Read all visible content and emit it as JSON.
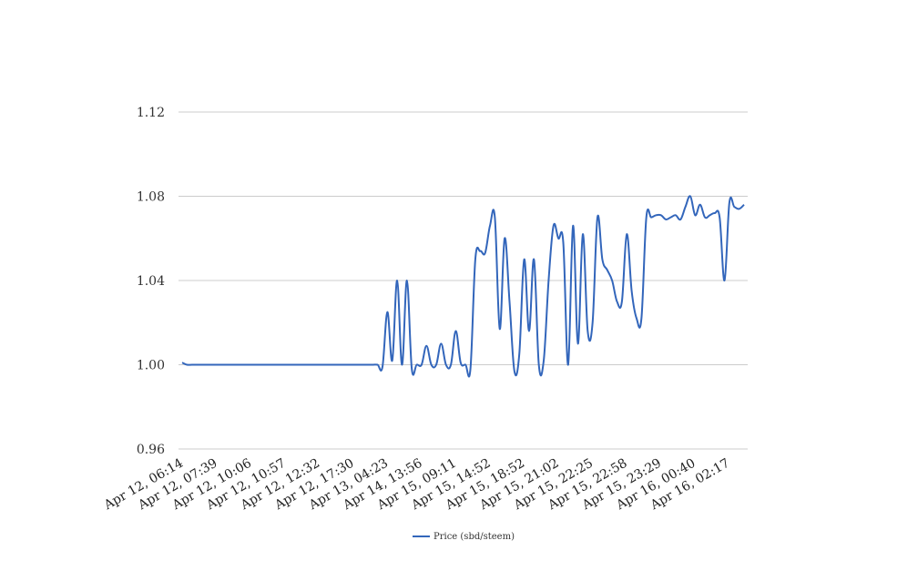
{
  "chart_data": {
    "type": "line",
    "title": "",
    "xlabel": "",
    "ylabel": "",
    "ylim": [
      0.96,
      1.12
    ],
    "yticks": [
      "0.96",
      "1.00",
      "1.04",
      "1.08",
      "1.12"
    ],
    "xtick_labels": [
      "Apr 12, 06:14",
      "Apr 12, 07:39",
      "Apr 12, 10:06",
      "Apr 12, 10:57",
      "Apr 12, 12:32",
      "Apr 12, 17:30",
      "Apr 13, 04:23",
      "Apr 14, 13:56",
      "Apr 15, 09:11",
      "Apr 15, 14:52",
      "Apr 15, 18:52",
      "Apr 15, 21:02",
      "Apr 15, 22:25",
      "Apr 15, 22:58",
      "Apr 15, 23:29",
      "Apr 16, 00:40",
      "Apr 16, 02:17"
    ],
    "grid": true,
    "legend_position": "bottom",
    "series": [
      {
        "name": "Price (sbd/steem)",
        "color": "#3366bb",
        "values": [
          1.001,
          1.0,
          1.0,
          1.0,
          1.0,
          1.0,
          1.0,
          1.0,
          1.0,
          1.0,
          1.0,
          1.0,
          1.0,
          1.0,
          1.0,
          1.0,
          1.0,
          1.0,
          1.0,
          1.0,
          1.0,
          1.0,
          1.0,
          1.0,
          1.0,
          1.0,
          1.0,
          1.0,
          1.0,
          1.0,
          1.0,
          1.0,
          1.0,
          1.0,
          1.0,
          1.0,
          1.0,
          1.0,
          1.0,
          1.0,
          1.0,
          0.999,
          1.025,
          1.002,
          1.04,
          1.0,
          1.04,
          0.998,
          1.0,
          1.0,
          1.009,
          1.0,
          1.0,
          1.01,
          1.0,
          1.0,
          1.016,
          1.001,
          1.0,
          0.998,
          1.05,
          1.054,
          1.053,
          1.066,
          1.07,
          1.017,
          1.06,
          1.03,
          0.997,
          1.005,
          1.05,
          1.016,
          1.05,
          1.0,
          1.002,
          1.04,
          1.066,
          1.06,
          1.058,
          1.0,
          1.066,
          1.01,
          1.062,
          1.016,
          1.02,
          1.07,
          1.05,
          1.045,
          1.04,
          1.03,
          1.03,
          1.062,
          1.035,
          1.022,
          1.022,
          1.07,
          1.07,
          1.071,
          1.071,
          1.069,
          1.07,
          1.071,
          1.069,
          1.075,
          1.08,
          1.071,
          1.076,
          1.07,
          1.071,
          1.072,
          1.07,
          1.04,
          1.077,
          1.075,
          1.074,
          1.076
        ]
      }
    ]
  }
}
